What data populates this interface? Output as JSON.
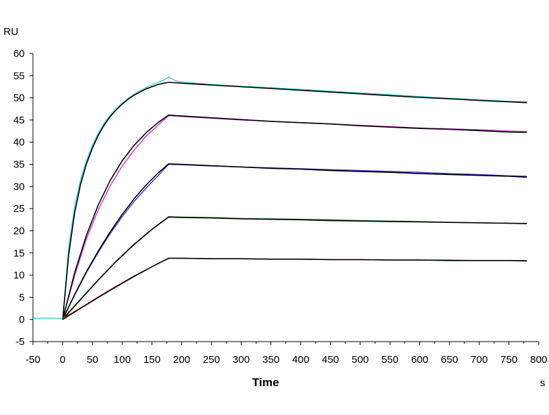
{
  "chart_data": {
    "type": "line",
    "title": "",
    "xlabel": "Time",
    "x_unit": "s",
    "ylabel": "RU",
    "xlim": [
      -50,
      800
    ],
    "ylim": [
      -5,
      60
    ],
    "xticks": [
      -50,
      0,
      50,
      100,
      150,
      200,
      250,
      300,
      350,
      400,
      450,
      500,
      550,
      600,
      650,
      700,
      750,
      800
    ],
    "yticks": [
      -5,
      0,
      5,
      10,
      15,
      20,
      25,
      30,
      35,
      40,
      45,
      50,
      55,
      60
    ],
    "grid": false,
    "legend": "none",
    "series": [
      {
        "color": "#33cccc",
        "role": "measured",
        "x": [
          -50,
          -20,
          0,
          10,
          20,
          30,
          40,
          50,
          60,
          70,
          80,
          90,
          100,
          110,
          120,
          130,
          140,
          150,
          160,
          170,
          178,
          190,
          200,
          250,
          300,
          350,
          400,
          450,
          500,
          550,
          600,
          650,
          700,
          750,
          780
        ],
        "y": [
          0.3,
          0.3,
          0.2,
          16.0,
          25.5,
          31.5,
          35.8,
          39.3,
          42.1,
          44.3,
          46.1,
          47.6,
          48.8,
          49.9,
          50.8,
          51.6,
          52.3,
          52.9,
          53.5,
          54.0,
          54.7,
          53.8,
          53.6,
          53.0,
          52.6,
          52.3,
          51.9,
          51.5,
          51.1,
          50.7,
          50.3,
          49.9,
          49.6,
          49.2,
          49.1
        ]
      },
      {
        "color": "#000000",
        "role": "fit",
        "x": [
          0,
          10,
          20,
          30,
          40,
          50,
          60,
          70,
          80,
          90,
          100,
          110,
          120,
          130,
          140,
          150,
          160,
          170,
          178,
          200,
          250,
          300,
          350,
          400,
          450,
          500,
          550,
          600,
          650,
          700,
          750,
          780
        ],
        "y": [
          0,
          14.5,
          24.0,
          30.5,
          35.1,
          38.7,
          41.6,
          43.9,
          45.8,
          47.3,
          48.6,
          49.7,
          50.6,
          51.3,
          52.0,
          52.5,
          53.0,
          53.3,
          53.5,
          53.3,
          52.9,
          52.5,
          52.1,
          51.7,
          51.3,
          50.9,
          50.5,
          50.1,
          49.8,
          49.4,
          49.1,
          48.9
        ]
      },
      {
        "color": "#cc33cc",
        "role": "measured",
        "x": [
          0,
          20,
          40,
          60,
          80,
          100,
          120,
          140,
          160,
          178,
          200,
          250,
          300,
          350,
          400,
          450,
          500,
          550,
          600,
          650,
          700,
          750,
          780
        ],
        "y": [
          0.2,
          9.8,
          18.2,
          24.8,
          30.2,
          34.6,
          38.2,
          41.3,
          43.8,
          46.0,
          45.8,
          45.4,
          45.0,
          44.7,
          44.4,
          44.1,
          43.8,
          43.5,
          43.2,
          43.0,
          42.8,
          42.5,
          42.4
        ]
      },
      {
        "color": "#000000",
        "role": "fit",
        "x": [
          0,
          20,
          40,
          60,
          80,
          100,
          120,
          140,
          160,
          178,
          200,
          250,
          300,
          350,
          400,
          450,
          500,
          550,
          600,
          650,
          700,
          750,
          780
        ],
        "y": [
          0,
          10.5,
          19.0,
          25.9,
          31.4,
          35.8,
          39.3,
          42.1,
          44.4,
          46.1,
          45.9,
          45.5,
          45.1,
          44.7,
          44.4,
          44.1,
          43.7,
          43.4,
          43.1,
          42.9,
          42.6,
          42.3,
          42.2
        ]
      },
      {
        "color": "#3333cc",
        "role": "measured",
        "x": [
          0,
          20,
          40,
          60,
          80,
          100,
          120,
          140,
          160,
          178,
          200,
          250,
          300,
          350,
          400,
          450,
          500,
          550,
          600,
          650,
          700,
          750,
          780
        ],
        "y": [
          0.2,
          5.5,
          10.6,
          15.2,
          19.4,
          23.2,
          26.6,
          29.6,
          32.4,
          35.0,
          34.9,
          34.6,
          34.4,
          34.2,
          34.0,
          33.8,
          33.6,
          33.4,
          33.2,
          32.9,
          32.7,
          32.4,
          32.3
        ]
      },
      {
        "color": "#000000",
        "role": "fit",
        "x": [
          0,
          20,
          40,
          60,
          80,
          100,
          120,
          140,
          160,
          178,
          200,
          250,
          300,
          350,
          400,
          450,
          500,
          550,
          600,
          650,
          700,
          750,
          780
        ],
        "y": [
          0,
          5.6,
          10.8,
          15.5,
          19.8,
          23.7,
          27.2,
          30.3,
          33.0,
          35.1,
          35.0,
          34.7,
          34.4,
          34.1,
          33.9,
          33.6,
          33.4,
          33.2,
          32.9,
          32.7,
          32.5,
          32.3,
          32.1
        ]
      },
      {
        "color": "#339933",
        "role": "measured",
        "x": [
          0,
          30,
          60,
          90,
          120,
          150,
          178,
          200,
          250,
          300,
          350,
          400,
          450,
          500,
          550,
          600,
          650,
          700,
          750,
          780
        ],
        "y": [
          0.2,
          4.6,
          9.0,
          13.2,
          17.0,
          20.4,
          23.2,
          23.1,
          23.0,
          22.8,
          22.7,
          22.6,
          22.5,
          22.3,
          22.2,
          22.1,
          21.9,
          21.8,
          21.7,
          21.7
        ]
      },
      {
        "color": "#000000",
        "role": "fit",
        "x": [
          0,
          30,
          60,
          90,
          120,
          150,
          178,
          200,
          250,
          300,
          350,
          400,
          450,
          500,
          550,
          600,
          650,
          700,
          750,
          780
        ],
        "y": [
          0,
          4.5,
          8.9,
          13.1,
          16.9,
          20.3,
          23.1,
          23.0,
          22.9,
          22.7,
          22.6,
          22.5,
          22.3,
          22.2,
          22.1,
          22.0,
          21.9,
          21.8,
          21.7,
          21.6
        ]
      },
      {
        "color": "#cc3333",
        "role": "measured",
        "x": [
          0,
          30,
          60,
          90,
          120,
          150,
          178,
          200,
          250,
          300,
          350,
          400,
          450,
          500,
          550,
          600,
          650,
          700,
          750,
          780
        ],
        "y": [
          0.2,
          2.6,
          5.1,
          7.5,
          9.8,
          11.9,
          13.8,
          13.8,
          13.7,
          13.7,
          13.6,
          13.6,
          13.5,
          13.5,
          13.4,
          13.4,
          13.4,
          13.3,
          13.3,
          13.3
        ]
      },
      {
        "color": "#000000",
        "role": "fit",
        "x": [
          0,
          30,
          60,
          90,
          120,
          150,
          178,
          200,
          250,
          300,
          350,
          400,
          450,
          500,
          550,
          600,
          650,
          700,
          750,
          780
        ],
        "y": [
          0,
          2.5,
          5.0,
          7.4,
          9.7,
          11.9,
          13.8,
          13.8,
          13.7,
          13.7,
          13.6,
          13.6,
          13.5,
          13.5,
          13.4,
          13.4,
          13.3,
          13.3,
          13.3,
          13.2
        ]
      }
    ]
  }
}
